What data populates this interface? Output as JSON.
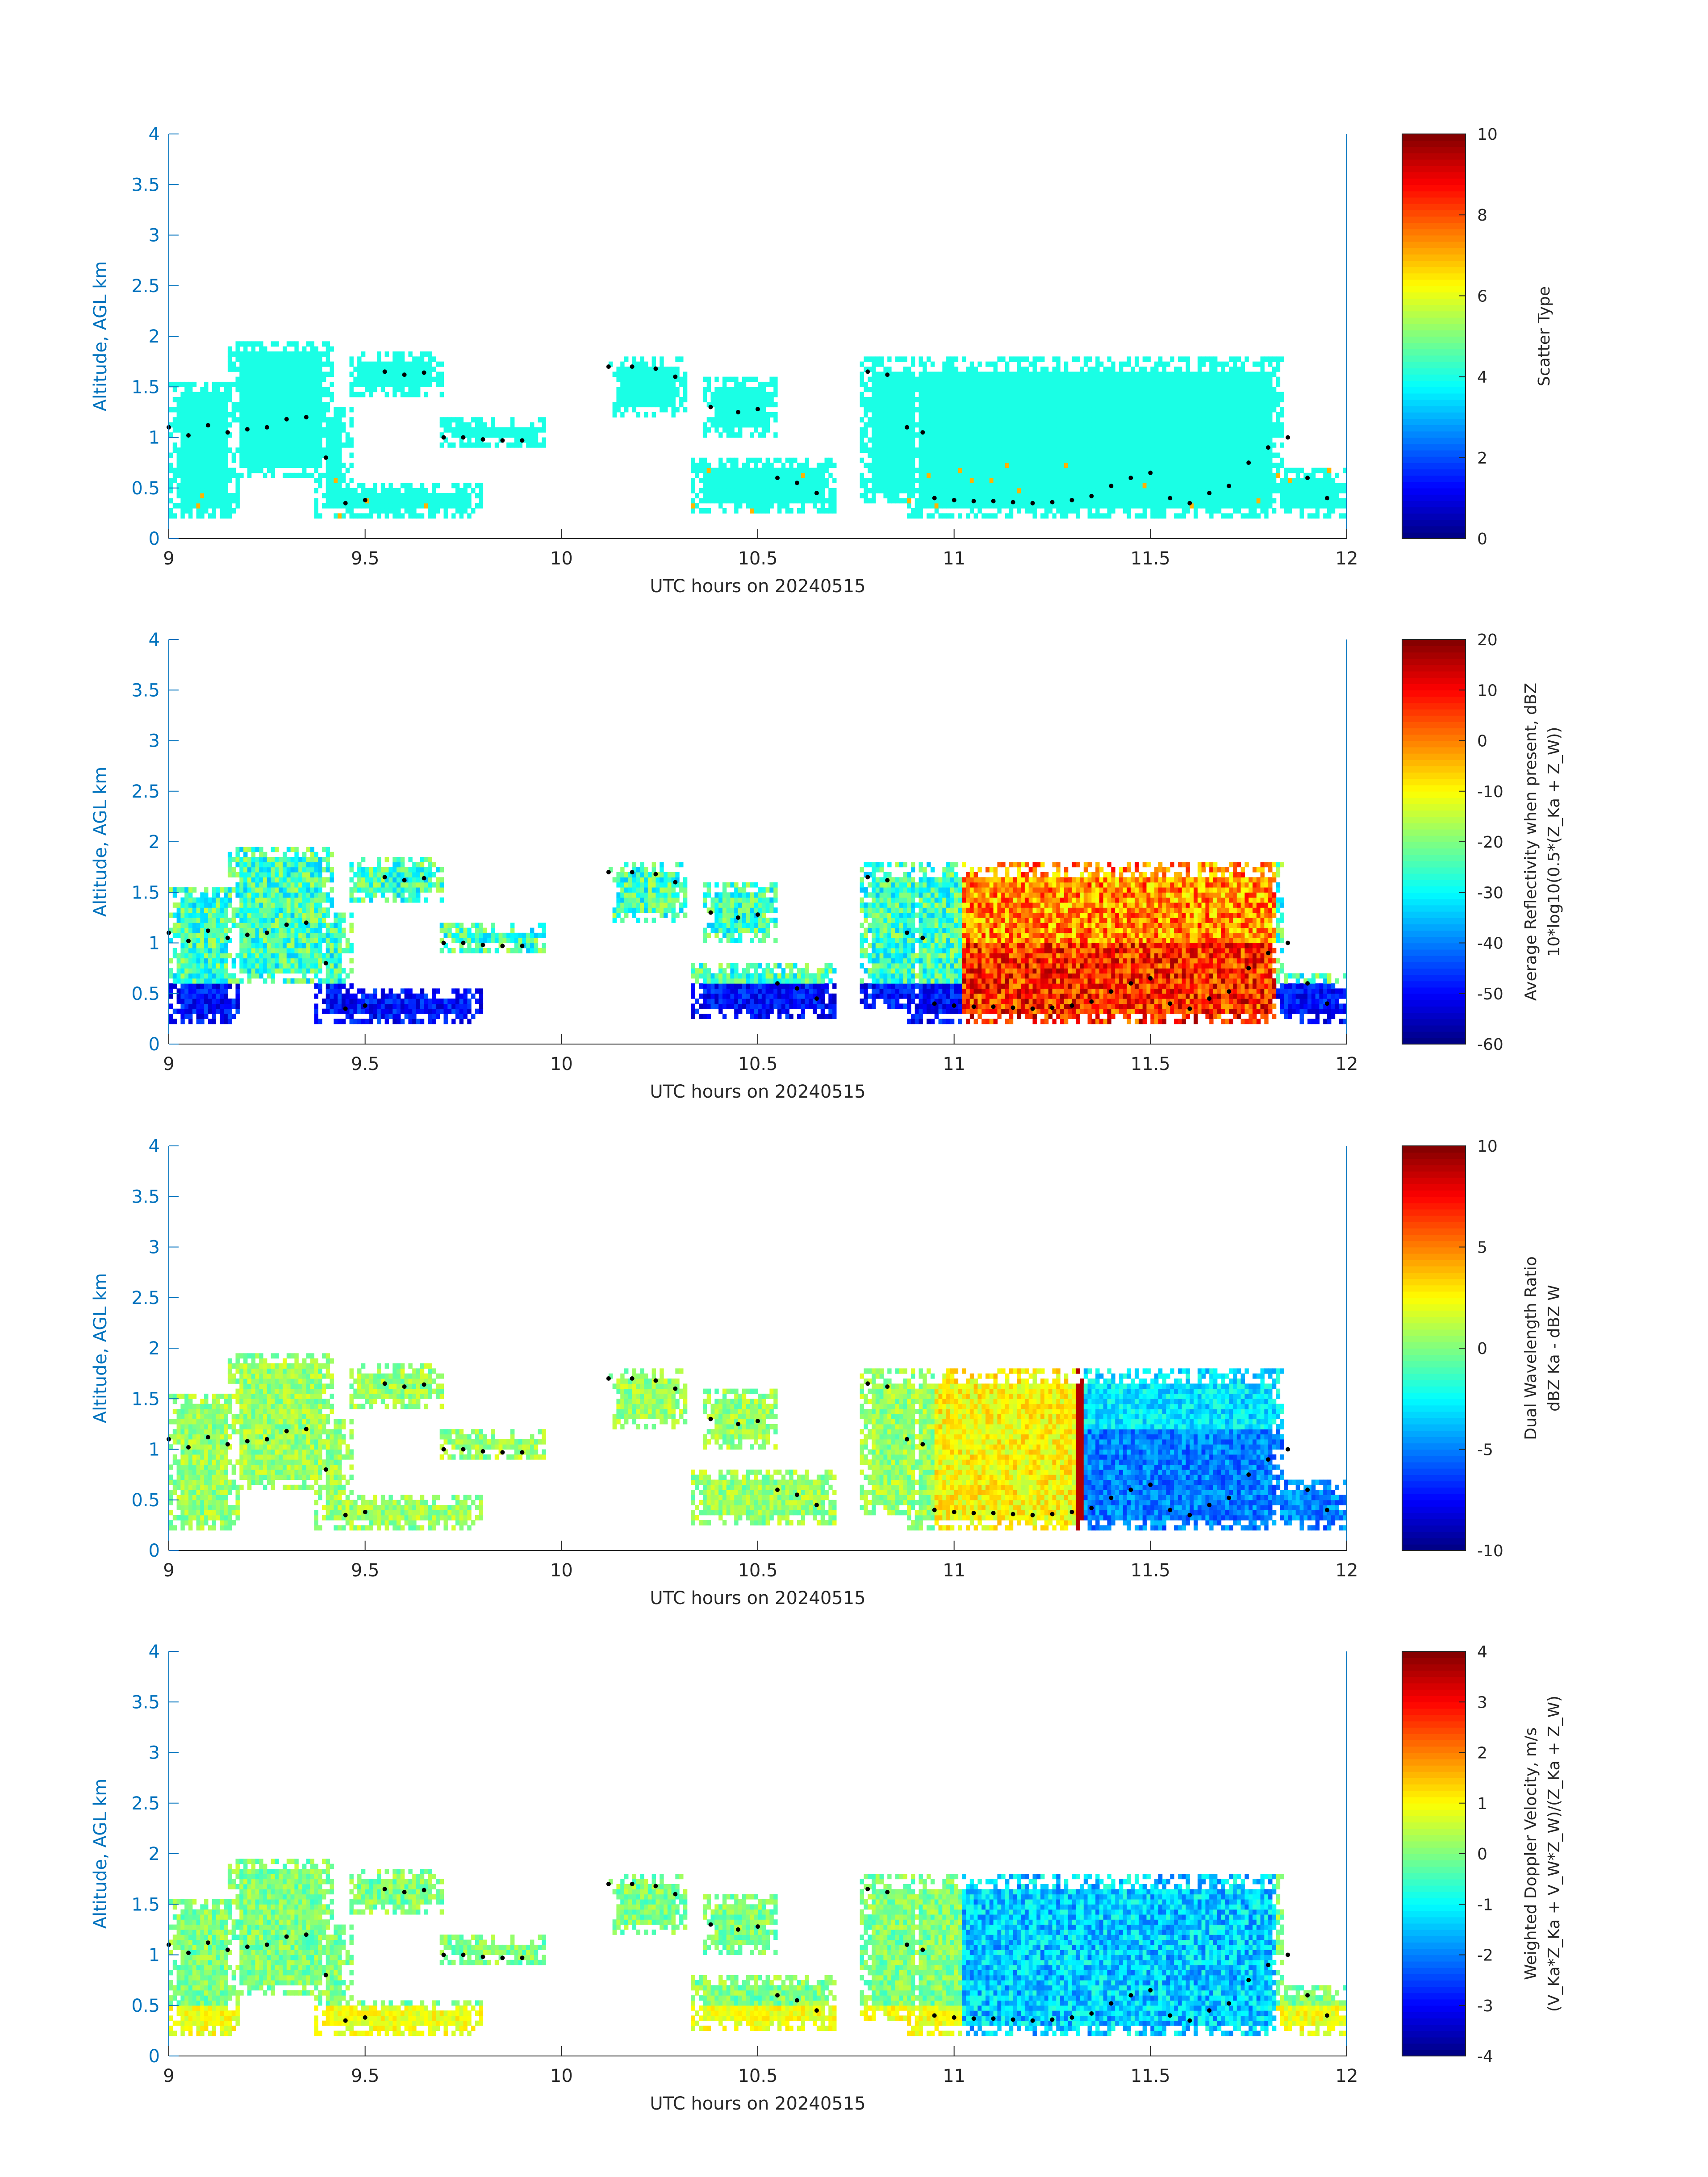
{
  "chart_data": [
    {
      "type": "heatmap",
      "field": "scatter_type",
      "xlabel": "UTC hours on 20240515",
      "ylabel": "Altitude, AGL km",
      "xlim": [
        9,
        12
      ],
      "ylim": [
        0,
        4
      ],
      "xticks": [
        9,
        9.5,
        10,
        10.5,
        11,
        11.5,
        12
      ],
      "xtick_labels": [
        "9",
        "9.5",
        "10",
        "10.5",
        "11",
        "11.5",
        "12"
      ],
      "yticks": [
        0,
        0.5,
        1,
        1.5,
        2,
        2.5,
        3,
        3.5,
        4
      ],
      "ytick_labels": [
        "0",
        "0.5",
        "1",
        "1.5",
        "2",
        "2.5",
        "3",
        "3.5",
        "4"
      ],
      "colorbar": {
        "label_line1": "Scatter Type",
        "label_line2": "",
        "clim": [
          0,
          10
        ],
        "ticks": [
          0,
          2,
          4,
          6,
          8,
          10
        ],
        "tick_labels": [
          "0",
          "2",
          "4",
          "6",
          "8",
          "10"
        ],
        "colormap": "jet"
      },
      "cloud_base_dots": true
    },
    {
      "type": "heatmap",
      "field": "average_reflectivity",
      "xlabel": "UTC hours on 20240515",
      "ylabel": "Altitude, AGL km",
      "xlim": [
        9,
        12
      ],
      "ylim": [
        0,
        4
      ],
      "xticks": [
        9,
        9.5,
        10,
        10.5,
        11,
        11.5,
        12
      ],
      "xtick_labels": [
        "9",
        "9.5",
        "10",
        "10.5",
        "11",
        "11.5",
        "12"
      ],
      "yticks": [
        0,
        0.5,
        1,
        1.5,
        2,
        2.5,
        3,
        3.5,
        4
      ],
      "ytick_labels": [
        "0",
        "0.5",
        "1",
        "1.5",
        "2",
        "2.5",
        "3",
        "3.5",
        "4"
      ],
      "colorbar": {
        "label_line1": "Average Reflectivity when present, dBZ",
        "label_line2": "10*log10(0.5*(Z_Ka + Z_W))",
        "clim": [
          -60,
          20
        ],
        "ticks": [
          -60,
          -50,
          -40,
          -30,
          -20,
          -10,
          0,
          10,
          20
        ],
        "tick_labels": [
          "-60",
          "-50",
          "-40",
          "-30",
          "-20",
          "-10",
          "0",
          "10",
          "20"
        ],
        "colormap": "jet"
      },
      "cloud_base_dots": true
    },
    {
      "type": "heatmap",
      "field": "dual_wavelength_ratio",
      "xlabel": "UTC hours on 20240515",
      "ylabel": "Altitude, AGL km",
      "xlim": [
        9,
        12
      ],
      "ylim": [
        0,
        4
      ],
      "xticks": [
        9,
        9.5,
        10,
        10.5,
        11,
        11.5,
        12
      ],
      "xtick_labels": [
        "9",
        "9.5",
        "10",
        "10.5",
        "11",
        "11.5",
        "12"
      ],
      "yticks": [
        0,
        0.5,
        1,
        1.5,
        2,
        2.5,
        3,
        3.5,
        4
      ],
      "ytick_labels": [
        "0",
        "0.5",
        "1",
        "1.5",
        "2",
        "2.5",
        "3",
        "3.5",
        "4"
      ],
      "colorbar": {
        "label_line1": "Dual Wavelength Ratio",
        "label_line2": "dBZ Ka - dBZ W",
        "clim": [
          -10,
          10
        ],
        "ticks": [
          -10,
          -5,
          0,
          5,
          10
        ],
        "tick_labels": [
          "-10",
          "-5",
          "0",
          "5",
          "10"
        ],
        "colormap": "jet"
      },
      "cloud_base_dots": true
    },
    {
      "type": "heatmap",
      "field": "weighted_doppler_velocity",
      "xlabel": "UTC hours on 20240515",
      "ylabel": "Altitude, AGL km",
      "xlim": [
        9,
        12
      ],
      "ylim": [
        0,
        4
      ],
      "xticks": [
        9,
        9.5,
        10,
        10.5,
        11,
        11.5,
        12
      ],
      "xtick_labels": [
        "9",
        "9.5",
        "10",
        "10.5",
        "11",
        "11.5",
        "12"
      ],
      "yticks": [
        0,
        0.5,
        1,
        1.5,
        2,
        2.5,
        3,
        3.5,
        4
      ],
      "ytick_labels": [
        "0",
        "0.5",
        "1",
        "1.5",
        "2",
        "2.5",
        "3",
        "3.5",
        "4"
      ],
      "colorbar": {
        "label_line1": "Weighted Doppler Velocity, m/s",
        "label_line2": "(V_Ka*Z_Ka + V_W*Z_W)/(Z_Ka + Z_W)",
        "clim": [
          -4,
          4
        ],
        "ticks": [
          -4,
          -3,
          -2,
          -1,
          0,
          1,
          2,
          3,
          4
        ],
        "tick_labels": [
          "-4",
          "-3",
          "-2",
          "-1",
          "0",
          "1",
          "2",
          "3",
          "4"
        ],
        "colormap": "jet"
      },
      "cloud_base_dots": true
    }
  ],
  "cloud_regions": [
    {
      "t0": 9.0,
      "t1": 9.18,
      "z0": 0.2,
      "z1": 1.55
    },
    {
      "t0": 9.15,
      "t1": 9.42,
      "z0": 0.6,
      "z1": 1.95
    },
    {
      "t0": 9.37,
      "t1": 9.47,
      "z0": 0.2,
      "z1": 1.3
    },
    {
      "t0": 9.46,
      "t1": 9.7,
      "z0": 1.4,
      "z1": 1.85
    },
    {
      "t0": 9.38,
      "t1": 9.8,
      "z0": 0.2,
      "z1": 0.55
    },
    {
      "t0": 9.69,
      "t1": 9.96,
      "z0": 0.88,
      "z1": 1.2
    },
    {
      "t0": 10.12,
      "t1": 10.32,
      "z0": 1.2,
      "z1": 1.8
    },
    {
      "t0": 10.36,
      "t1": 10.55,
      "z0": 1.0,
      "z1": 1.6
    },
    {
      "t0": 10.33,
      "t1": 10.7,
      "z0": 0.25,
      "z1": 0.8
    },
    {
      "t0": 10.76,
      "t1": 10.93,
      "z0": 0.35,
      "z1": 1.78
    },
    {
      "t0": 10.88,
      "t1": 11.84,
      "z0": 0.2,
      "z1": 1.78
    },
    {
      "t0": 11.8,
      "t1": 12.0,
      "z0": 0.2,
      "z1": 0.7
    }
  ],
  "cloud_base_points": [
    [
      9.0,
      1.1
    ],
    [
      9.05,
      1.02
    ],
    [
      9.1,
      1.12
    ],
    [
      9.15,
      1.05
    ],
    [
      9.2,
      1.08
    ],
    [
      9.25,
      1.1
    ],
    [
      9.3,
      1.18
    ],
    [
      9.35,
      1.2
    ],
    [
      9.4,
      0.8
    ],
    [
      9.45,
      0.35
    ],
    [
      9.5,
      0.38
    ],
    [
      9.55,
      1.65
    ],
    [
      9.6,
      1.62
    ],
    [
      9.65,
      1.64
    ],
    [
      9.7,
      1.0
    ],
    [
      9.75,
      1.0
    ],
    [
      9.8,
      0.98
    ],
    [
      9.85,
      0.97
    ],
    [
      9.9,
      0.97
    ],
    [
      10.12,
      1.7
    ],
    [
      10.18,
      1.7
    ],
    [
      10.24,
      1.68
    ],
    [
      10.29,
      1.6
    ],
    [
      10.38,
      1.3
    ],
    [
      10.45,
      1.25
    ],
    [
      10.5,
      1.28
    ],
    [
      10.55,
      0.6
    ],
    [
      10.6,
      0.55
    ],
    [
      10.65,
      0.45
    ],
    [
      10.78,
      1.65
    ],
    [
      10.83,
      1.62
    ],
    [
      10.88,
      1.1
    ],
    [
      10.92,
      1.05
    ],
    [
      10.95,
      0.4
    ],
    [
      11.0,
      0.38
    ],
    [
      11.05,
      0.37
    ],
    [
      11.1,
      0.37
    ],
    [
      11.15,
      0.36
    ],
    [
      11.2,
      0.35
    ],
    [
      11.25,
      0.36
    ],
    [
      11.3,
      0.38
    ],
    [
      11.35,
      0.42
    ],
    [
      11.4,
      0.52
    ],
    [
      11.45,
      0.6
    ],
    [
      11.5,
      0.65
    ],
    [
      11.55,
      0.4
    ],
    [
      11.6,
      0.35
    ],
    [
      11.65,
      0.45
    ],
    [
      11.7,
      0.52
    ],
    [
      11.75,
      0.75
    ],
    [
      11.8,
      0.9
    ],
    [
      11.85,
      1.0
    ],
    [
      11.9,
      0.6
    ],
    [
      11.95,
      0.4
    ]
  ],
  "colors": {
    "axis_blue": "#0072bd",
    "tick_gray": "#262626",
    "scatter_main": "#2bffd4",
    "scatter_alt": "#ff3a00",
    "dot": "#000000"
  }
}
